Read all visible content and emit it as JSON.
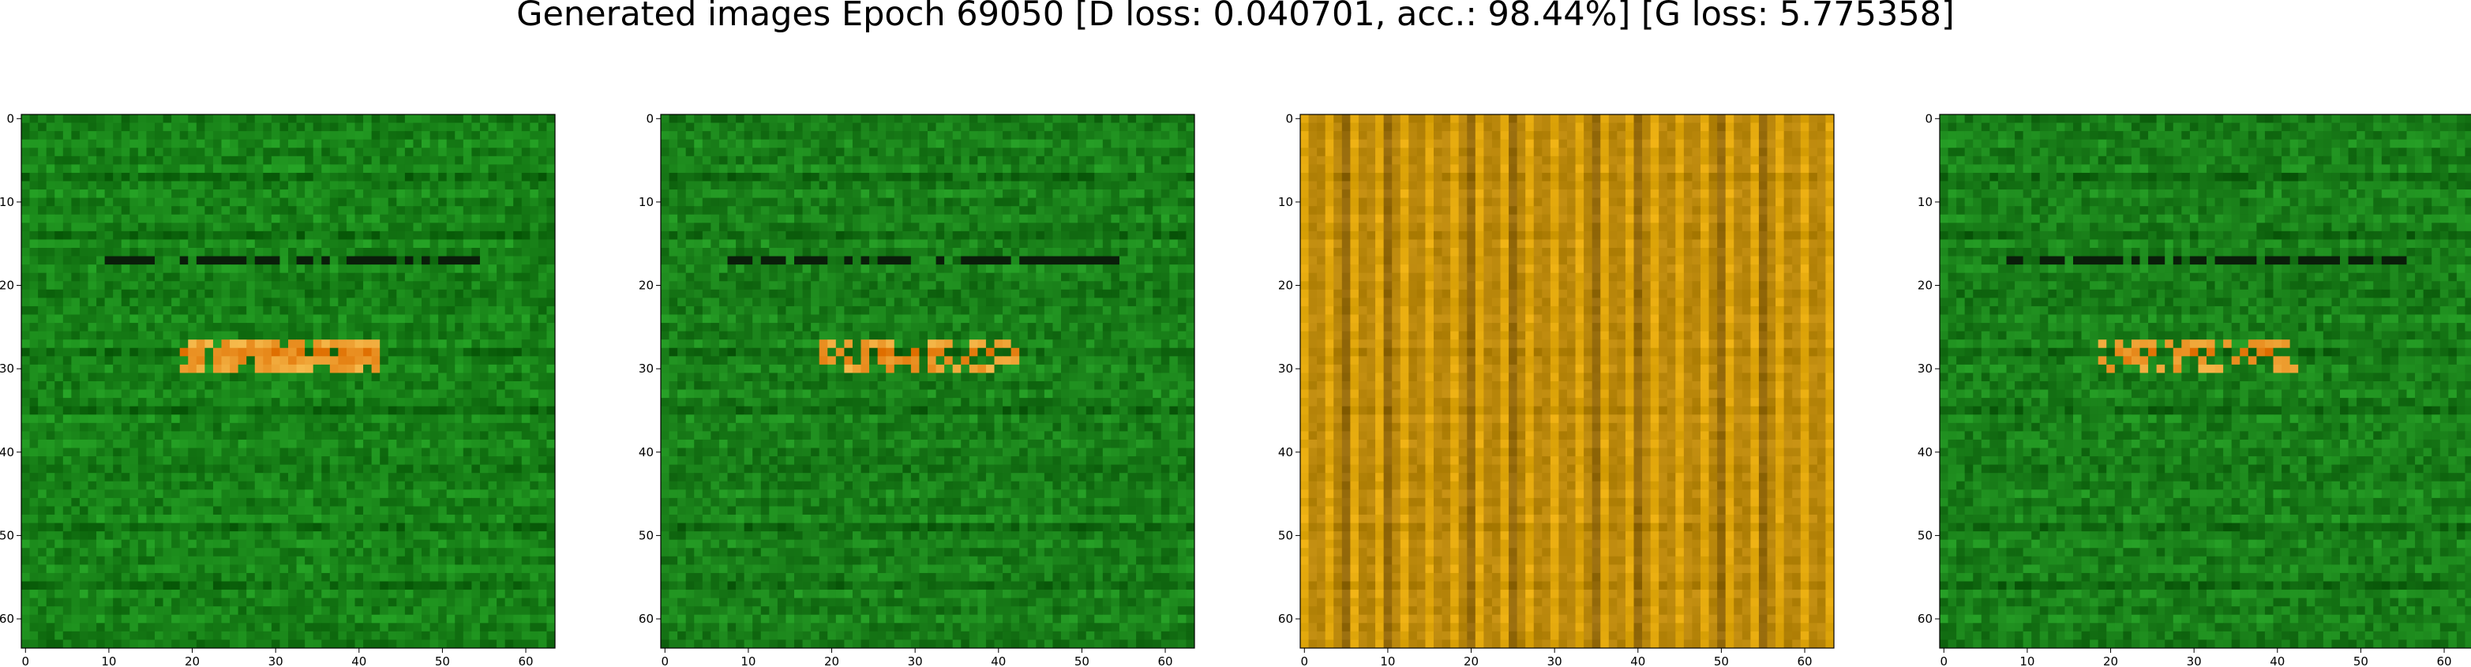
{
  "chart_data": {
    "type": "heatmap",
    "title": "Generated images Epoch 69050 [D loss: 0.040701, acc.: 98.44%] [G loss: 5.775358]",
    "subplots": [
      {
        "kind": "image",
        "size": [
          64,
          64
        ],
        "dominant_color": "#177f17",
        "xlim": [
          0,
          63
        ],
        "ylim": [
          63,
          0
        ],
        "xticks": [
          "0",
          "10",
          "20",
          "30",
          "40",
          "50",
          "60"
        ],
        "yticks": [
          "0",
          "10",
          "20",
          "30",
          "40",
          "50",
          "60"
        ]
      },
      {
        "kind": "image",
        "size": [
          64,
          64
        ],
        "dominant_color": "#187c18",
        "xlim": [
          0,
          63
        ],
        "ylim": [
          63,
          0
        ],
        "xticks": [
          "0",
          "10",
          "20",
          "30",
          "40",
          "50",
          "60"
        ],
        "yticks": [
          "0",
          "10",
          "20",
          "30",
          "40",
          "50",
          "60"
        ]
      },
      {
        "kind": "image",
        "size": [
          64,
          64
        ],
        "dominant_color": "#b8860b",
        "xlim": [
          0,
          63
        ],
        "ylim": [
          63,
          0
        ],
        "xticks": [
          "0",
          "10",
          "20",
          "30",
          "40",
          "50",
          "60"
        ],
        "yticks": [
          "0",
          "10",
          "20",
          "30",
          "40",
          "50",
          "60"
        ]
      },
      {
        "kind": "image",
        "size": [
          64,
          64
        ],
        "dominant_color": "#187c18",
        "xlim": [
          0,
          63
        ],
        "ylim": [
          63,
          0
        ],
        "xticks": [
          "0",
          "10",
          "20",
          "30",
          "40",
          "50",
          "60"
        ],
        "yticks": [
          "0",
          "10",
          "20",
          "30",
          "40",
          "50",
          "60"
        ]
      }
    ]
  }
}
